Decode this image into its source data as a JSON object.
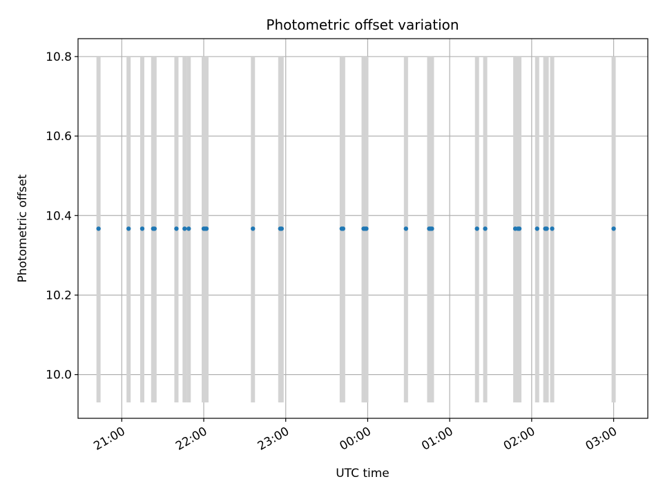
{
  "chart_data": {
    "type": "scatter",
    "title": "Photometric offset variation",
    "xlabel": "UTC time",
    "ylabel": "Photometric offset",
    "x_axis": {
      "kind": "time",
      "start": "2000-01-01T20:28:00Z",
      "end": "2000-01-02T03:25:00Z",
      "tick_values": [
        "2000-01-01T21:00:00Z",
        "2000-01-01T22:00:00Z",
        "2000-01-01T23:00:00Z",
        "2000-01-02T00:00:00Z",
        "2000-01-02T01:00:00Z",
        "2000-01-02T02:00:00Z",
        "2000-01-02T03:00:00Z"
      ],
      "tick_labels": [
        "21:00",
        "22:00",
        "23:00",
        "00:00",
        "01:00",
        "02:00",
        "03:00"
      ]
    },
    "ylim": [
      9.89,
      10.845
    ],
    "yticks": [
      10.0,
      10.2,
      10.4,
      10.6,
      10.8
    ],
    "ytick_labels": [
      "10.0",
      "10.2",
      "10.4",
      "10.6",
      "10.8"
    ],
    "grid": true,
    "series": [
      {
        "color": "#1f77b4",
        "y": 10.367,
        "x": [
          "2000-01-01T20:43:00Z",
          "2000-01-01T21:05:00Z",
          "2000-01-01T21:15:00Z",
          "2000-01-01T21:23:00Z",
          "2000-01-01T21:24:00Z",
          "2000-01-01T21:40:00Z",
          "2000-01-01T21:46:00Z",
          "2000-01-01T21:49:00Z",
          "2000-01-01T22:00:00Z",
          "2000-01-01T22:01:00Z",
          "2000-01-01T22:02:00Z",
          "2000-01-01T22:36:00Z",
          "2000-01-01T22:56:00Z",
          "2000-01-01T22:57:00Z",
          "2000-01-01T23:41:00Z",
          "2000-01-01T23:42:00Z",
          "2000-01-01T23:57:00Z",
          "2000-01-01T23:58:00Z",
          "2000-01-01T23:59:00Z",
          "2000-01-02T00:28:00Z",
          "2000-01-02T00:45:00Z",
          "2000-01-02T00:46:00Z",
          "2000-01-02T00:47:00Z",
          "2000-01-02T01:20:00Z",
          "2000-01-02T01:26:00Z",
          "2000-01-02T01:48:00Z",
          "2000-01-02T01:50:00Z",
          "2000-01-02T01:51:00Z",
          "2000-01-02T02:04:00Z",
          "2000-01-02T02:10:00Z",
          "2000-01-02T02:11:00Z",
          "2000-01-02T02:15:00Z",
          "2000-01-02T03:00:00Z"
        ]
      }
    ],
    "bands": {
      "color": "#d3d3d3",
      "y_range": [
        9.93,
        10.8
      ],
      "x": [
        "2000-01-01T20:43:00Z",
        "2000-01-01T21:05:00Z",
        "2000-01-01T21:15:00Z",
        "2000-01-01T21:23:00Z",
        "2000-01-01T21:24:00Z",
        "2000-01-01T21:40:00Z",
        "2000-01-01T21:46:00Z",
        "2000-01-01T21:49:00Z",
        "2000-01-01T22:00:00Z",
        "2000-01-01T22:01:00Z",
        "2000-01-01T22:02:00Z",
        "2000-01-01T22:36:00Z",
        "2000-01-01T22:56:00Z",
        "2000-01-01T22:57:00Z",
        "2000-01-01T23:41:00Z",
        "2000-01-01T23:42:00Z",
        "2000-01-01T23:57:00Z",
        "2000-01-01T23:58:00Z",
        "2000-01-01T23:59:00Z",
        "2000-01-02T00:28:00Z",
        "2000-01-02T00:45:00Z",
        "2000-01-02T00:46:00Z",
        "2000-01-02T00:47:00Z",
        "2000-01-02T01:20:00Z",
        "2000-01-02T01:26:00Z",
        "2000-01-02T01:48:00Z",
        "2000-01-02T01:50:00Z",
        "2000-01-02T01:51:00Z",
        "2000-01-02T02:04:00Z",
        "2000-01-02T02:10:00Z",
        "2000-01-02T02:11:00Z",
        "2000-01-02T02:15:00Z",
        "2000-01-02T03:00:00Z"
      ]
    }
  }
}
